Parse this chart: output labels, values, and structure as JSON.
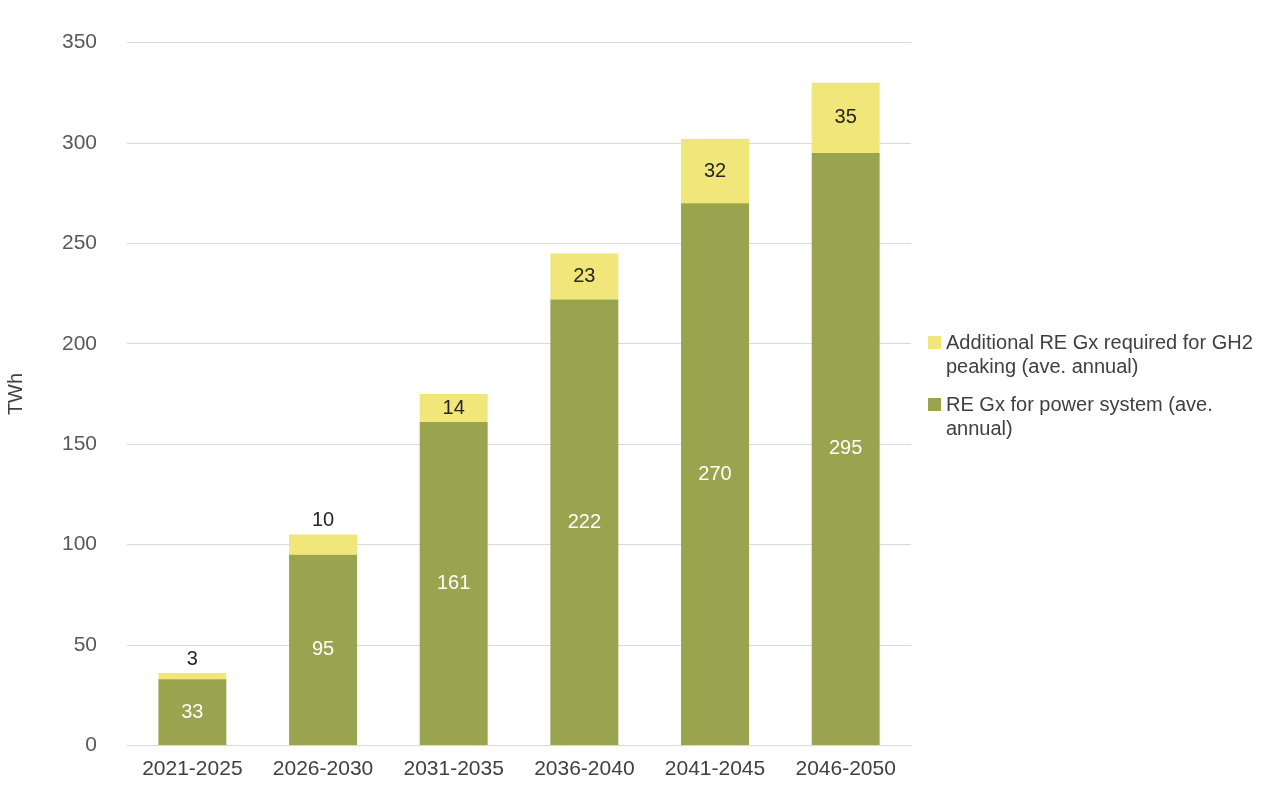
{
  "chart_data": {
    "type": "bar",
    "stacked": true,
    "ylabel": "TWh",
    "categories": [
      "2021-2025",
      "2026-2030",
      "2031-2035",
      "2036-2040",
      "2041-2045",
      "2046-2050"
    ],
    "series": [
      {
        "name": "RE Gx for power system (ave. annual)",
        "color": "#9aa34e",
        "values": [
          33,
          95,
          161,
          222,
          270,
          295
        ]
      },
      {
        "name": "Additional RE Gx required for GH2 peaking (ave. annual)",
        "color": "#f0e67a",
        "values": [
          3,
          10,
          14,
          23,
          32,
          35
        ]
      }
    ],
    "ylim": [
      0,
      350
    ],
    "yticks": [
      0,
      50,
      100,
      150,
      200,
      250,
      300,
      350
    ],
    "grid": "y",
    "legend": "right",
    "data_labels": true
  }
}
